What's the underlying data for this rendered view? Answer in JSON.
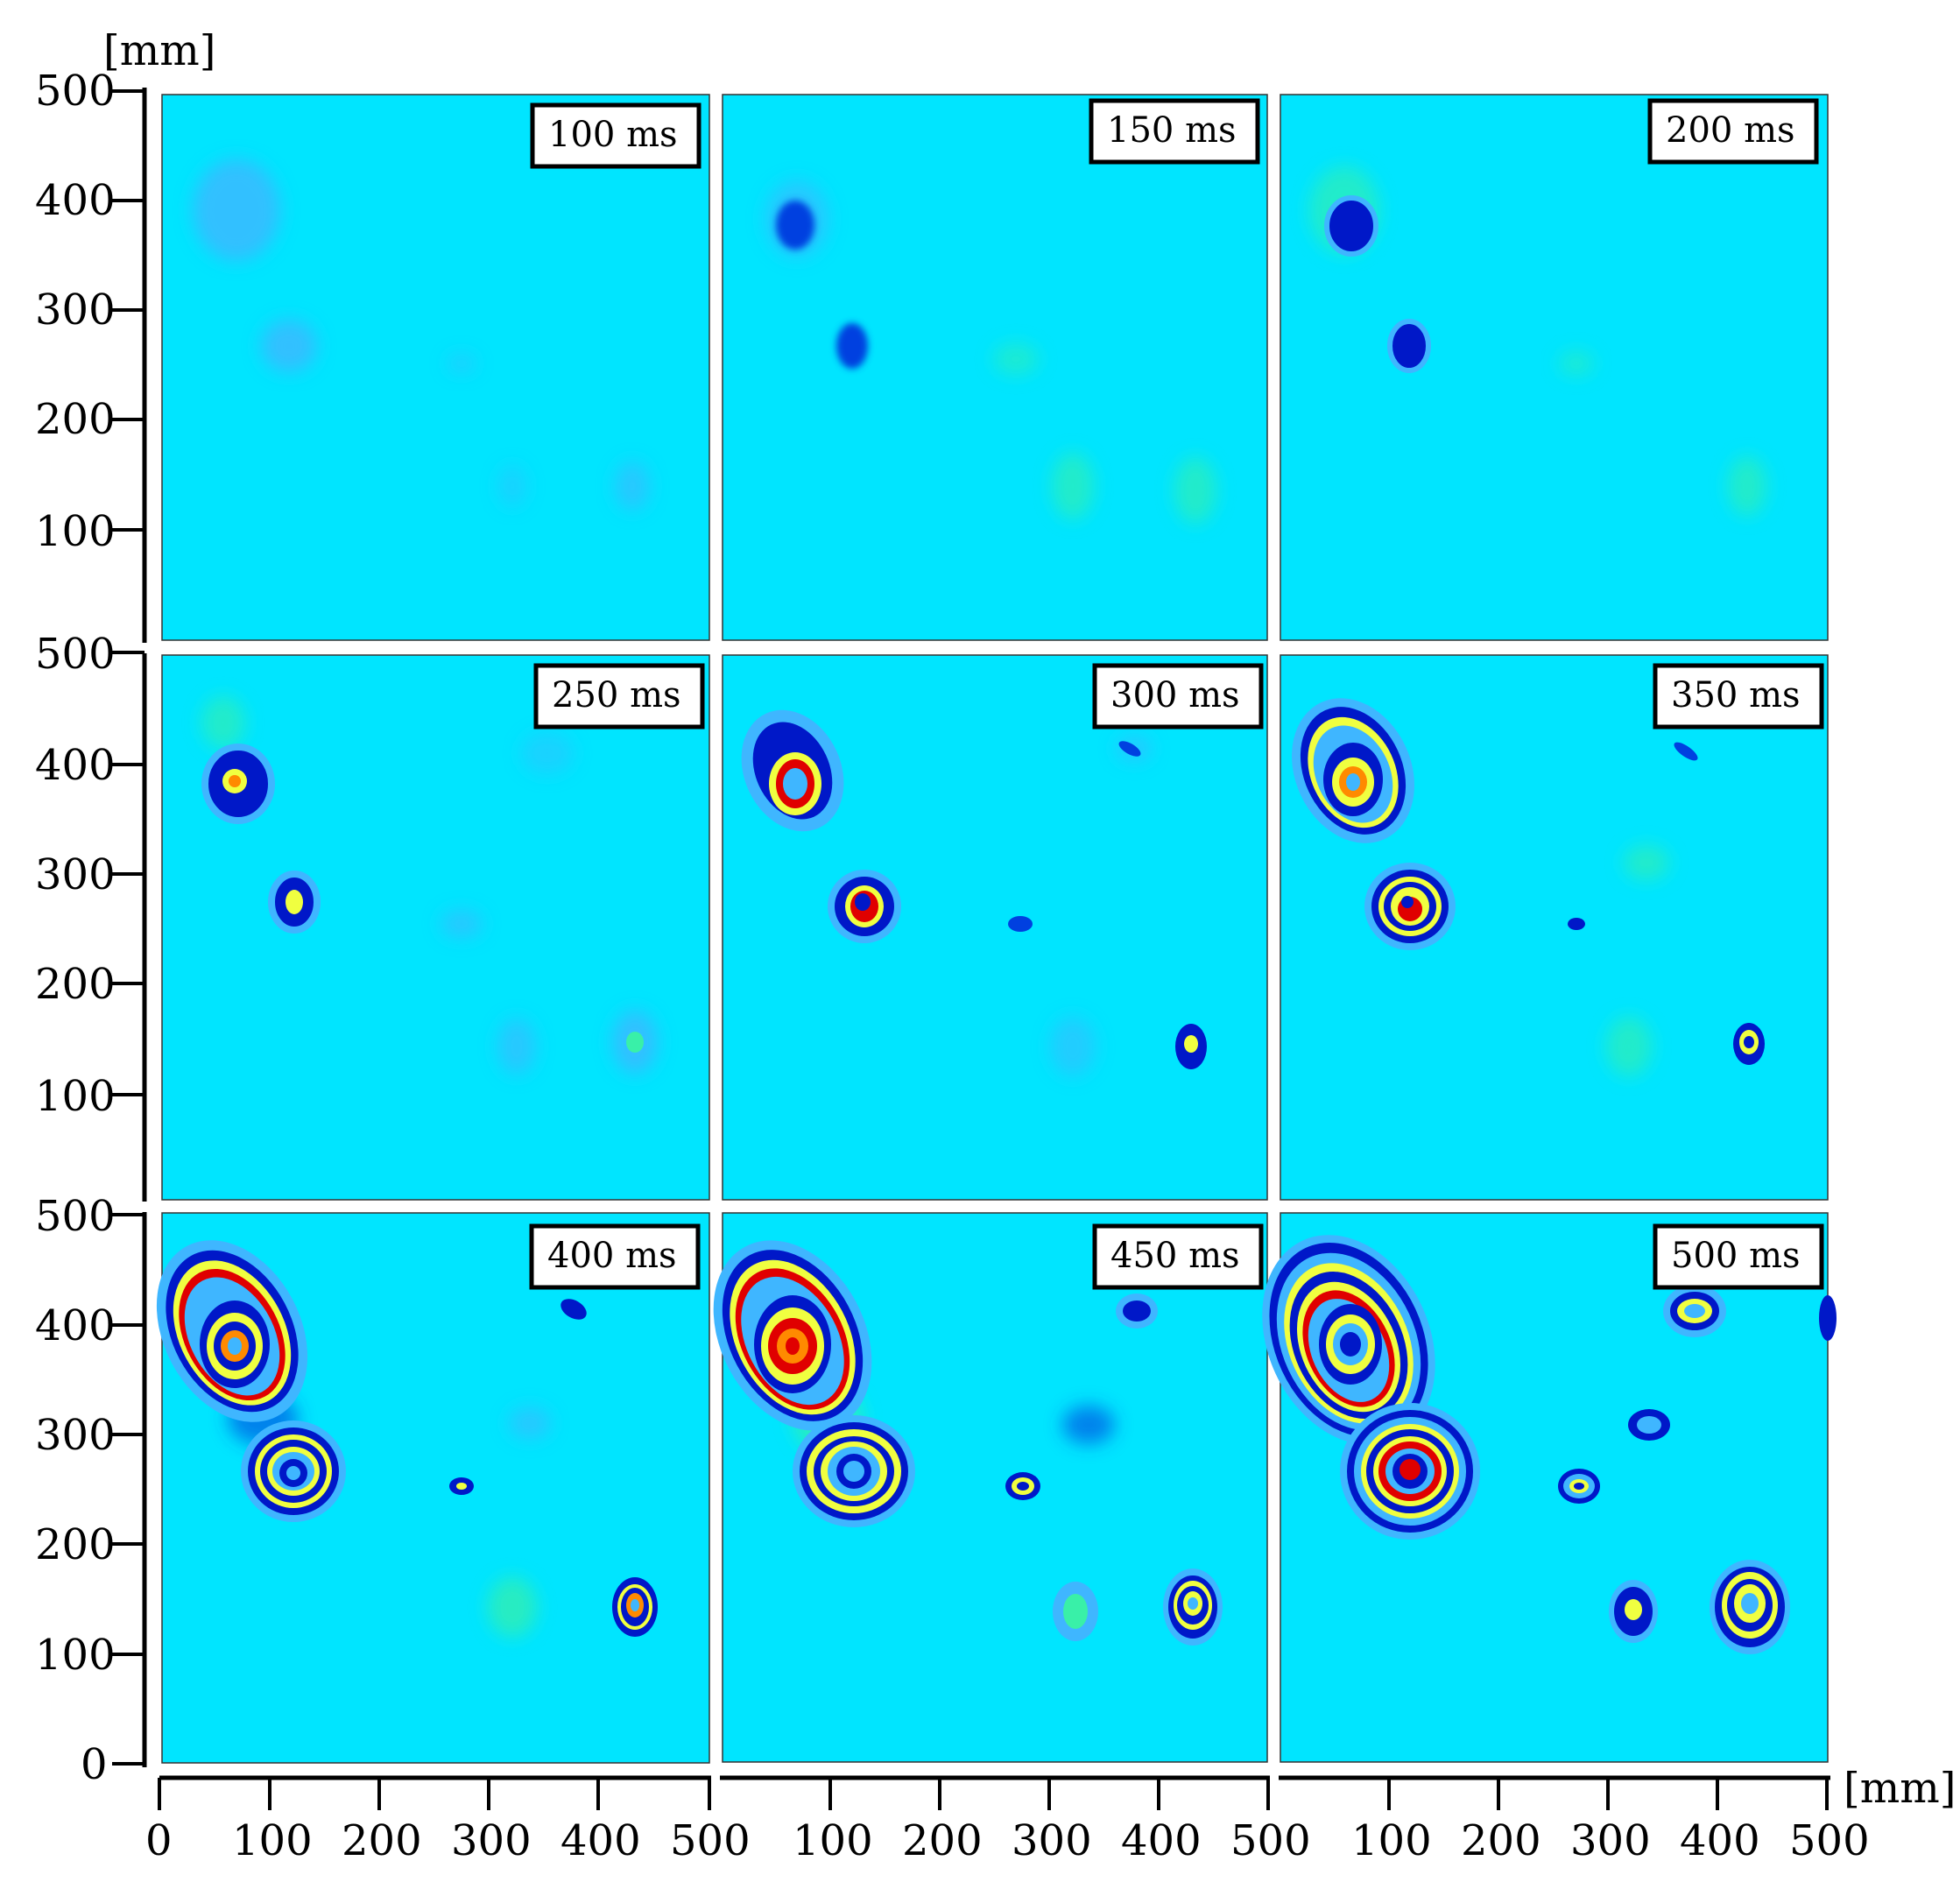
{
  "figure": {
    "unit_label_y": "[mm]",
    "unit_label_x": "[mm]",
    "colors": {
      "background": "#00e5ff",
      "light_blue": "#3fb6ff",
      "dark_blue": "#0018c8",
      "yellow": "#f0ff40",
      "orange": "#ff8a00",
      "red": "#e00000"
    }
  },
  "y_axes": [
    {
      "ticks": [
        "500",
        "400",
        "300",
        "200",
        "100"
      ]
    },
    {
      "ticks": [
        "500",
        "400",
        "300",
        "200",
        "100"
      ]
    },
    {
      "ticks": [
        "500",
        "400",
        "300",
        "200",
        "100",
        "0"
      ]
    }
  ],
  "x_axes": [
    {
      "ticks": [
        "0",
        "100",
        "200",
        "300",
        "400",
        "500"
      ]
    },
    {
      "ticks": [
        "100",
        "200",
        "300",
        "400",
        "500"
      ]
    },
    {
      "ticks": [
        "100",
        "200",
        "300",
        "400",
        "500"
      ]
    }
  ],
  "panels": [
    {
      "label": "100 ms"
    },
    {
      "label": "150 ms"
    },
    {
      "label": "200 ms"
    },
    {
      "label": "250 ms"
    },
    {
      "label": "300 ms"
    },
    {
      "label": "350 ms"
    },
    {
      "label": "400 ms"
    },
    {
      "label": "450 ms"
    },
    {
      "label": "500 ms"
    }
  ]
}
